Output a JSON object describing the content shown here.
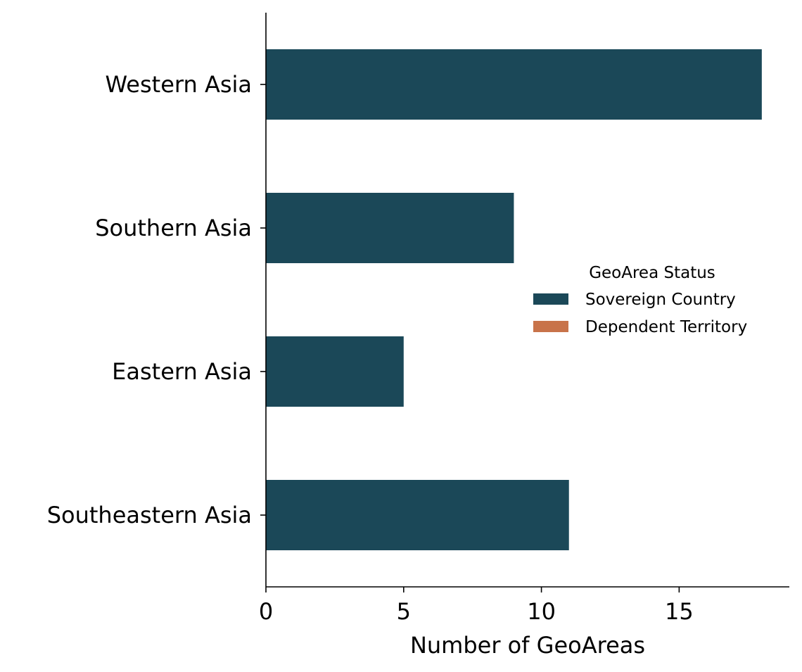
{
  "chart_data": {
    "type": "bar",
    "orientation": "horizontal",
    "categories": [
      "Western Asia",
      "Southern Asia",
      "Eastern Asia",
      "Southeastern Asia"
    ],
    "series": [
      {
        "name": "Sovereign Country",
        "color": "#1b4858",
        "values": [
          18,
          9,
          5,
          11
        ]
      },
      {
        "name": "Dependent Territory",
        "color": "#c8734a",
        "values": [
          0,
          0,
          0,
          0
        ]
      }
    ],
    "xlabel": "Number of GeoAreas",
    "ylabel": "",
    "xlim": [
      0,
      19
    ],
    "xticks": [
      0,
      5,
      10,
      15
    ],
    "grid": false,
    "legend": {
      "title": "GeoArea Status",
      "placement": "center-right"
    }
  }
}
